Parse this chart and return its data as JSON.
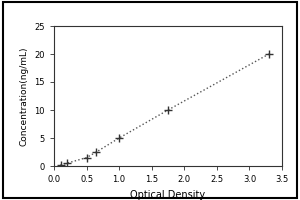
{
  "x_data": [
    0.1,
    0.2,
    0.5,
    0.65,
    1.0,
    1.75,
    3.3
  ],
  "y_data": [
    0.2,
    0.5,
    1.5,
    2.5,
    5.0,
    10.0,
    20.0
  ],
  "xlabel": "Optical Density",
  "ylabel": "Concentration(ng/mL)",
  "xlim": [
    0,
    3.5
  ],
  "ylim": [
    0,
    25
  ],
  "xticks": [
    0.0,
    0.5,
    1.0,
    1.5,
    2.0,
    2.5,
    3.0,
    3.5
  ],
  "yticks": [
    0,
    5,
    10,
    15,
    20,
    25
  ],
  "line_color": "#555555",
  "marker_color": "#333333",
  "background_color": "#ffffff",
  "outer_border_color": "#000000",
  "marker_style": "+",
  "xlabel_fontsize": 7,
  "ylabel_fontsize": 6.5,
  "tick_fontsize": 6,
  "figsize": [
    3.0,
    2.0
  ],
  "dpi": 100
}
